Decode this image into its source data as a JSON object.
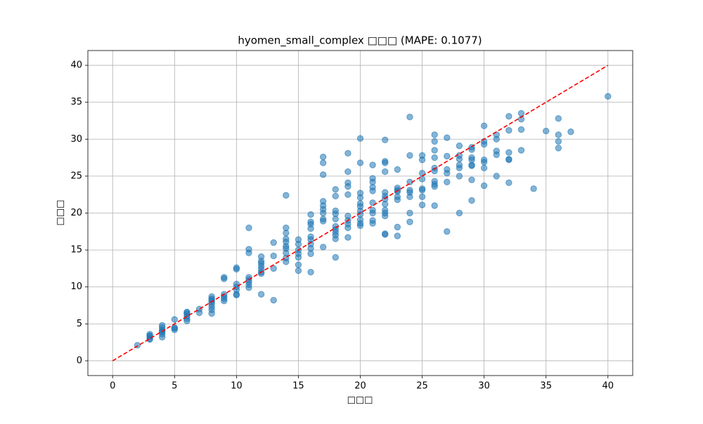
{
  "chart_data": {
    "type": "scatter",
    "title": "hyomen_small_complex □□□ (MAPE: 0.1077)",
    "x_label": "□□□",
    "y_label": "□□□",
    "xlim": [
      -2,
      42
    ],
    "ylim": [
      -2,
      42
    ],
    "xticks": [
      0,
      5,
      10,
      15,
      20,
      25,
      30,
      35,
      40
    ],
    "yticks": [
      0,
      5,
      10,
      15,
      20,
      25,
      30,
      35,
      40
    ],
    "grid": true,
    "series": [
      {
        "color": "#1f77b4",
        "x": [
          2,
          3,
          3,
          3,
          3,
          3,
          4,
          4,
          4,
          4,
          4,
          4,
          4,
          5,
          5,
          5,
          5,
          6,
          6,
          6,
          6,
          6,
          6,
          7,
          7,
          8,
          8,
          8,
          8,
          8,
          8,
          8,
          8,
          9,
          9,
          9,
          9,
          9,
          9,
          10,
          10,
          10,
          10,
          10,
          10,
          10,
          11,
          11,
          11,
          11,
          11,
          11,
          11,
          11,
          12,
          12,
          12,
          12,
          12,
          12,
          12,
          12,
          13,
          13,
          13,
          13,
          14,
          14,
          14,
          14,
          14,
          14,
          14,
          14,
          14,
          14,
          15,
          15,
          15,
          15,
          15,
          15,
          15,
          16,
          16,
          16,
          16,
          16,
          16,
          16,
          16,
          16,
          16,
          17,
          17,
          17,
          17,
          17,
          17,
          17,
          17,
          17,
          17,
          18,
          18,
          18,
          18,
          18,
          18,
          18,
          18,
          18,
          18,
          18,
          19,
          19,
          19,
          19,
          19,
          19,
          19,
          19,
          19,
          19,
          20,
          20,
          20,
          20,
          20,
          20,
          20,
          20,
          20,
          20,
          20,
          21,
          21,
          21,
          21,
          21,
          21,
          21,
          21,
          21,
          21,
          22,
          22,
          22,
          22,
          22,
          22,
          22,
          22,
          22,
          22,
          22,
          22,
          22,
          23,
          23,
          23,
          23,
          23,
          23,
          23,
          23,
          24,
          24,
          24,
          24,
          24,
          24,
          24,
          24,
          25,
          25,
          25,
          25,
          25,
          25,
          25,
          25,
          26,
          26,
          26,
          26,
          26,
          26,
          26,
          26,
          26,
          26,
          27,
          27,
          27,
          27,
          27,
          27,
          28,
          28,
          28,
          28,
          28,
          28,
          28,
          29,
          29,
          29,
          29,
          29,
          29,
          29,
          29,
          30,
          30,
          30,
          30,
          30,
          30,
          30,
          31,
          31,
          31,
          31,
          31,
          32,
          32,
          32,
          32,
          32,
          32,
          33,
          33,
          33,
          33,
          34,
          35,
          36,
          36,
          36,
          36,
          37,
          40
        ],
        "y": [
          2.1,
          3.6,
          3.3,
          3.0,
          2.9,
          3.4,
          4.8,
          4.5,
          4.2,
          3.9,
          3.6,
          3.2,
          4.0,
          5.6,
          4.5,
          4.2,
          4.4,
          6.6,
          6.3,
          6.0,
          5.7,
          5.4,
          6.5,
          6.5,
          7.0,
          8.7,
          8.4,
          8.0,
          7.7,
          7.3,
          6.9,
          6.4,
          8.2,
          11.3,
          11.1,
          9.0,
          8.7,
          8.4,
          8.1,
          12.6,
          12.4,
          10.4,
          10.0,
          9.6,
          9.0,
          8.9,
          18.0,
          15.1,
          14.6,
          11.3,
          11.0,
          10.7,
          10.3,
          9.9,
          13.5,
          13.2,
          12.8,
          12.4,
          12.0,
          11.8,
          9.0,
          14.1,
          16.0,
          14.2,
          12.5,
          8.2,
          22.4,
          18.0,
          17.3,
          16.5,
          16.1,
          15.5,
          15.2,
          14.6,
          13.9,
          13.4,
          16.4,
          15.8,
          15.0,
          14.5,
          14.0,
          13.0,
          12.2,
          19.8,
          18.8,
          18.5,
          17.9,
          16.8,
          16.4,
          15.8,
          15.2,
          14.5,
          12.0,
          27.6,
          26.8,
          25.2,
          21.6,
          21.0,
          20.5,
          19.2,
          18.9,
          15.4,
          20.0,
          23.2,
          22.3,
          20.3,
          19.9,
          19.2,
          18.2,
          17.8,
          17.4,
          17.0,
          16.5,
          14.0,
          28.1,
          25.6,
          24.1,
          23.6,
          22.5,
          19.6,
          19.0,
          18.5,
          18.0,
          16.7,
          30.1,
          26.8,
          22.7,
          22.1,
          21.3,
          20.9,
          20.3,
          19.8,
          19.1,
          18.6,
          18.3,
          26.5,
          24.7,
          24.2,
          23.5,
          23.0,
          21.4,
          20.4,
          20.0,
          19.0,
          18.6,
          29.9,
          27.0,
          26.8,
          25.6,
          22.8,
          22.3,
          21.9,
          21.2,
          20.4,
          20.0,
          19.6,
          17.2,
          17.1,
          25.9,
          23.4,
          23.1,
          22.9,
          22.2,
          21.8,
          18.1,
          16.9,
          33.0,
          27.8,
          24.2,
          23.1,
          22.8,
          22.2,
          20.0,
          18.8,
          27.8,
          27.2,
          25.4,
          24.6,
          23.3,
          23.1,
          22.2,
          21.1,
          30.6,
          29.7,
          28.5,
          27.5,
          26.1,
          25.7,
          24.3,
          23.9,
          23.6,
          21.0,
          30.2,
          27.7,
          25.9,
          25.4,
          24.2,
          17.5,
          29.1,
          27.8,
          27.3,
          26.5,
          26.1,
          25.0,
          20.0,
          28.9,
          28.6,
          27.5,
          27.2,
          26.5,
          26.4,
          24.5,
          21.7,
          31.8,
          29.7,
          29.3,
          27.2,
          26.9,
          26.1,
          23.7,
          30.6,
          30.0,
          28.4,
          27.9,
          25.0,
          33.1,
          31.2,
          28.2,
          27.3,
          27.2,
          24.1,
          33.5,
          32.7,
          31.3,
          28.5,
          23.3,
          31.1,
          32.8,
          30.6,
          29.7,
          28.8,
          31.0,
          35.8
        ]
      }
    ],
    "reference_line": {
      "x": [
        0,
        40
      ],
      "y": [
        0,
        40
      ],
      "color": "#ff0000"
    }
  }
}
